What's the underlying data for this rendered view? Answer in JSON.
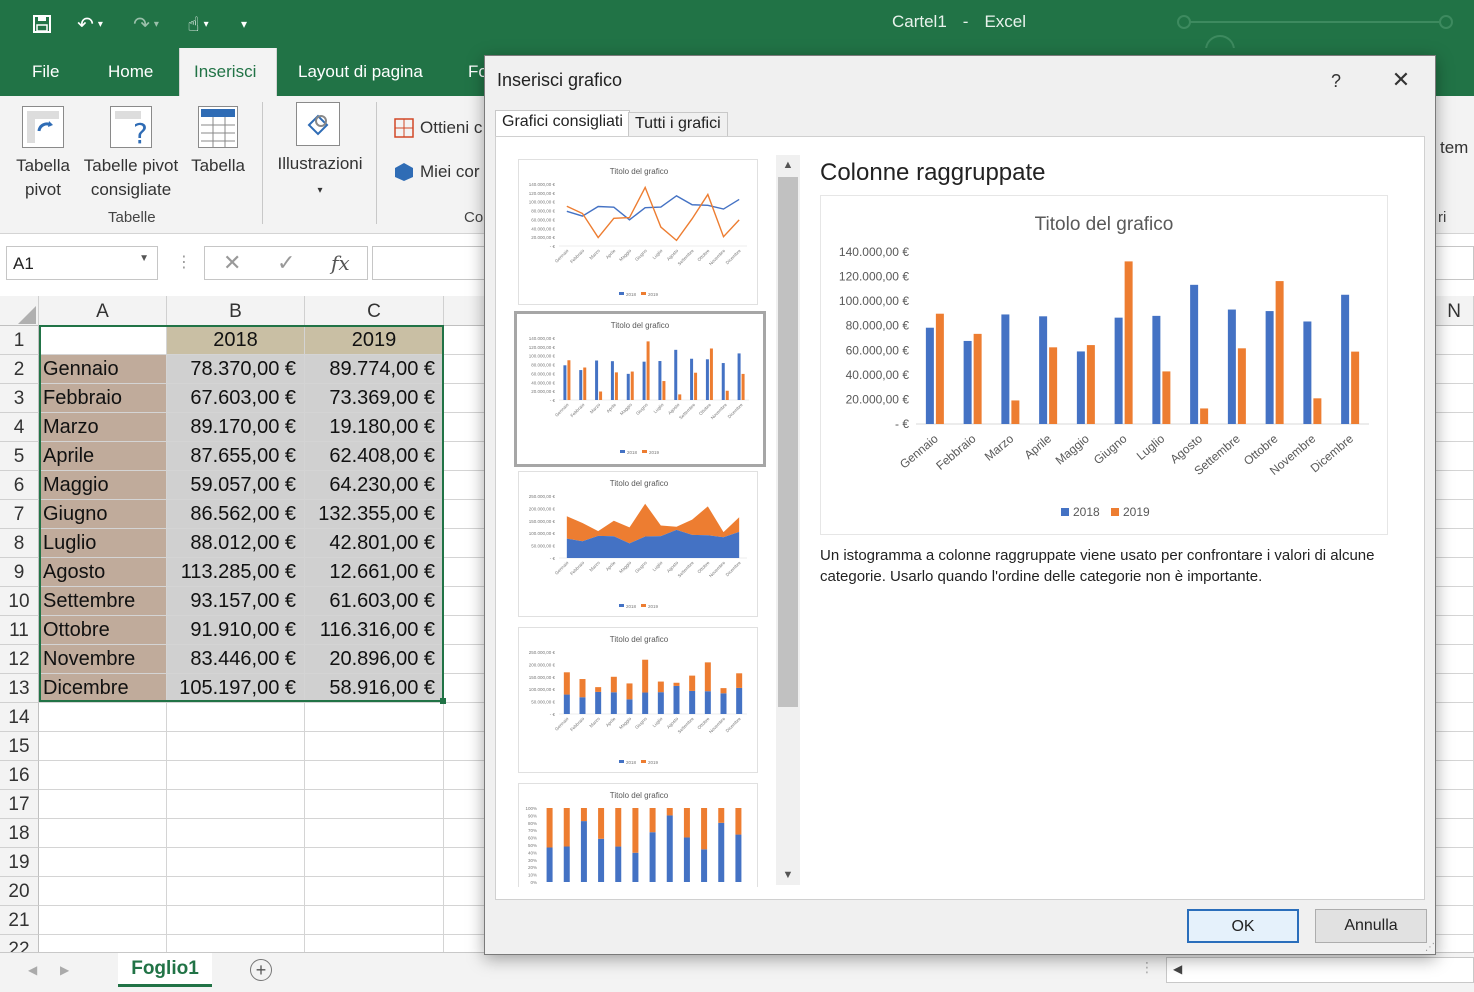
{
  "app": {
    "title": "Cartel1",
    "separator": "-",
    "name": "Excel"
  },
  "ribbon_tabs": [
    "File",
    "Home",
    "Inserisci",
    "Layout di pagina",
    "Fo"
  ],
  "ribbon": {
    "pivot": "Tabella pivot",
    "recommended_pivot": "Tabelle pivot consigliate",
    "table": "Tabella",
    "group_tabelle": "Tabelle",
    "illustrations": "Illustrazioni",
    "get_addins": "Ottieni c",
    "my_addins": "Miei cor",
    "group_co": "Co",
    "right_tem": "tem",
    "right_ri": "ri"
  },
  "formula_bar": {
    "namebox": "A1",
    "fx": "fx"
  },
  "columns": [
    "A",
    "B",
    "C"
  ],
  "right_col": "N",
  "rows": [
    [
      "",
      "2018",
      "2019"
    ],
    [
      "Gennaio",
      "78.370,00 €",
      "89.774,00 €"
    ],
    [
      "Febbraio",
      "67.603,00 €",
      "73.369,00 €"
    ],
    [
      "Marzo",
      "89.170,00 €",
      "19.180,00 €"
    ],
    [
      "Aprile",
      "87.655,00 €",
      "62.408,00 €"
    ],
    [
      "Maggio",
      "59.057,00 €",
      "64.230,00 €"
    ],
    [
      "Giugno",
      "86.562,00 €",
      "132.355,00 €"
    ],
    [
      "Luglio",
      "88.012,00 €",
      "42.801,00 €"
    ],
    [
      "Agosto",
      "113.285,00 €",
      "12.661,00 €"
    ],
    [
      "Settembre",
      "93.157,00 €",
      "61.603,00 €"
    ],
    [
      "Ottobre",
      "91.910,00 €",
      "116.316,00 €"
    ],
    [
      "Novembre",
      "83.446,00 €",
      "20.896,00 €"
    ],
    [
      "Dicembre",
      "105.197,00 €",
      "58.916,00 €"
    ]
  ],
  "row_numbers": [
    "1",
    "2",
    "3",
    "4",
    "5",
    "6",
    "7",
    "8",
    "9",
    "10",
    "11",
    "12",
    "13",
    "14",
    "15",
    "16",
    "17",
    "18",
    "19",
    "20",
    "21",
    "22"
  ],
  "sheet": {
    "name": "Foglio1"
  },
  "dialog": {
    "title": "Inserisci grafico",
    "help": "?",
    "close": "✕",
    "tabs": [
      "Grafici consigliati",
      "Tutti i grafici"
    ],
    "chart_type_title": "Colonne raggruppate",
    "description": "Un istogramma a colonne raggruppate viene usato per confrontare i valori di alcune categorie. Usarlo quando l'ordine delle categorie non è importante.",
    "ok": "OK",
    "cancel": "Annulla"
  },
  "colors": {
    "s2018": "#4472c4",
    "s2019": "#ed7d31",
    "excel_green": "#217346"
  },
  "chart_data": {
    "type": "bar",
    "title": "Titolo del grafico",
    "categories": [
      "Gennaio",
      "Febbraio",
      "Marzo",
      "Aprile",
      "Maggio",
      "Giugno",
      "Luglio",
      "Agosto",
      "Settembre",
      "Ottobre",
      "Novembre",
      "Dicembre"
    ],
    "series": [
      {
        "name": "2018",
        "values": [
          78370,
          67603,
          89170,
          87655,
          59057,
          86562,
          88012,
          113285,
          93157,
          91910,
          83446,
          105197
        ]
      },
      {
        "name": "2019",
        "values": [
          89774,
          73369,
          19180,
          62408,
          64230,
          132355,
          42801,
          12661,
          61603,
          116316,
          20896,
          58916
        ]
      }
    ],
    "ylim": [
      0,
      140000
    ],
    "yticks": [
      "-   €",
      "20.000,00 €",
      "40.000,00 €",
      "60.000,00 €",
      "80.000,00 €",
      "100.000,00 €",
      "120.000,00 €",
      "140.000,00 €"
    ],
    "legend": "bottom",
    "grid": false
  },
  "thumbnails": {
    "title": "Titolo del grafico",
    "types": [
      "line",
      "bar",
      "area",
      "stacked-bar",
      "stacked-100"
    ],
    "line_ticks": [
      "140.000,00 €",
      "120.000,00 €",
      "100.000,00 €",
      "80.000,00 €",
      "60.000,00 €",
      "40.000,00 €",
      "20.000,00 €",
      "- €"
    ],
    "area_ticks": [
      "250.000,00 €",
      "200.000,00 €",
      "150.000,00 €",
      "100.000,00 €",
      "50.000,00 €",
      "- €"
    ],
    "pct_ticks": [
      "100%",
      "90%",
      "80%",
      "70%",
      "60%",
      "50%",
      "40%",
      "30%",
      "20%",
      "10%",
      "0%"
    ]
  }
}
